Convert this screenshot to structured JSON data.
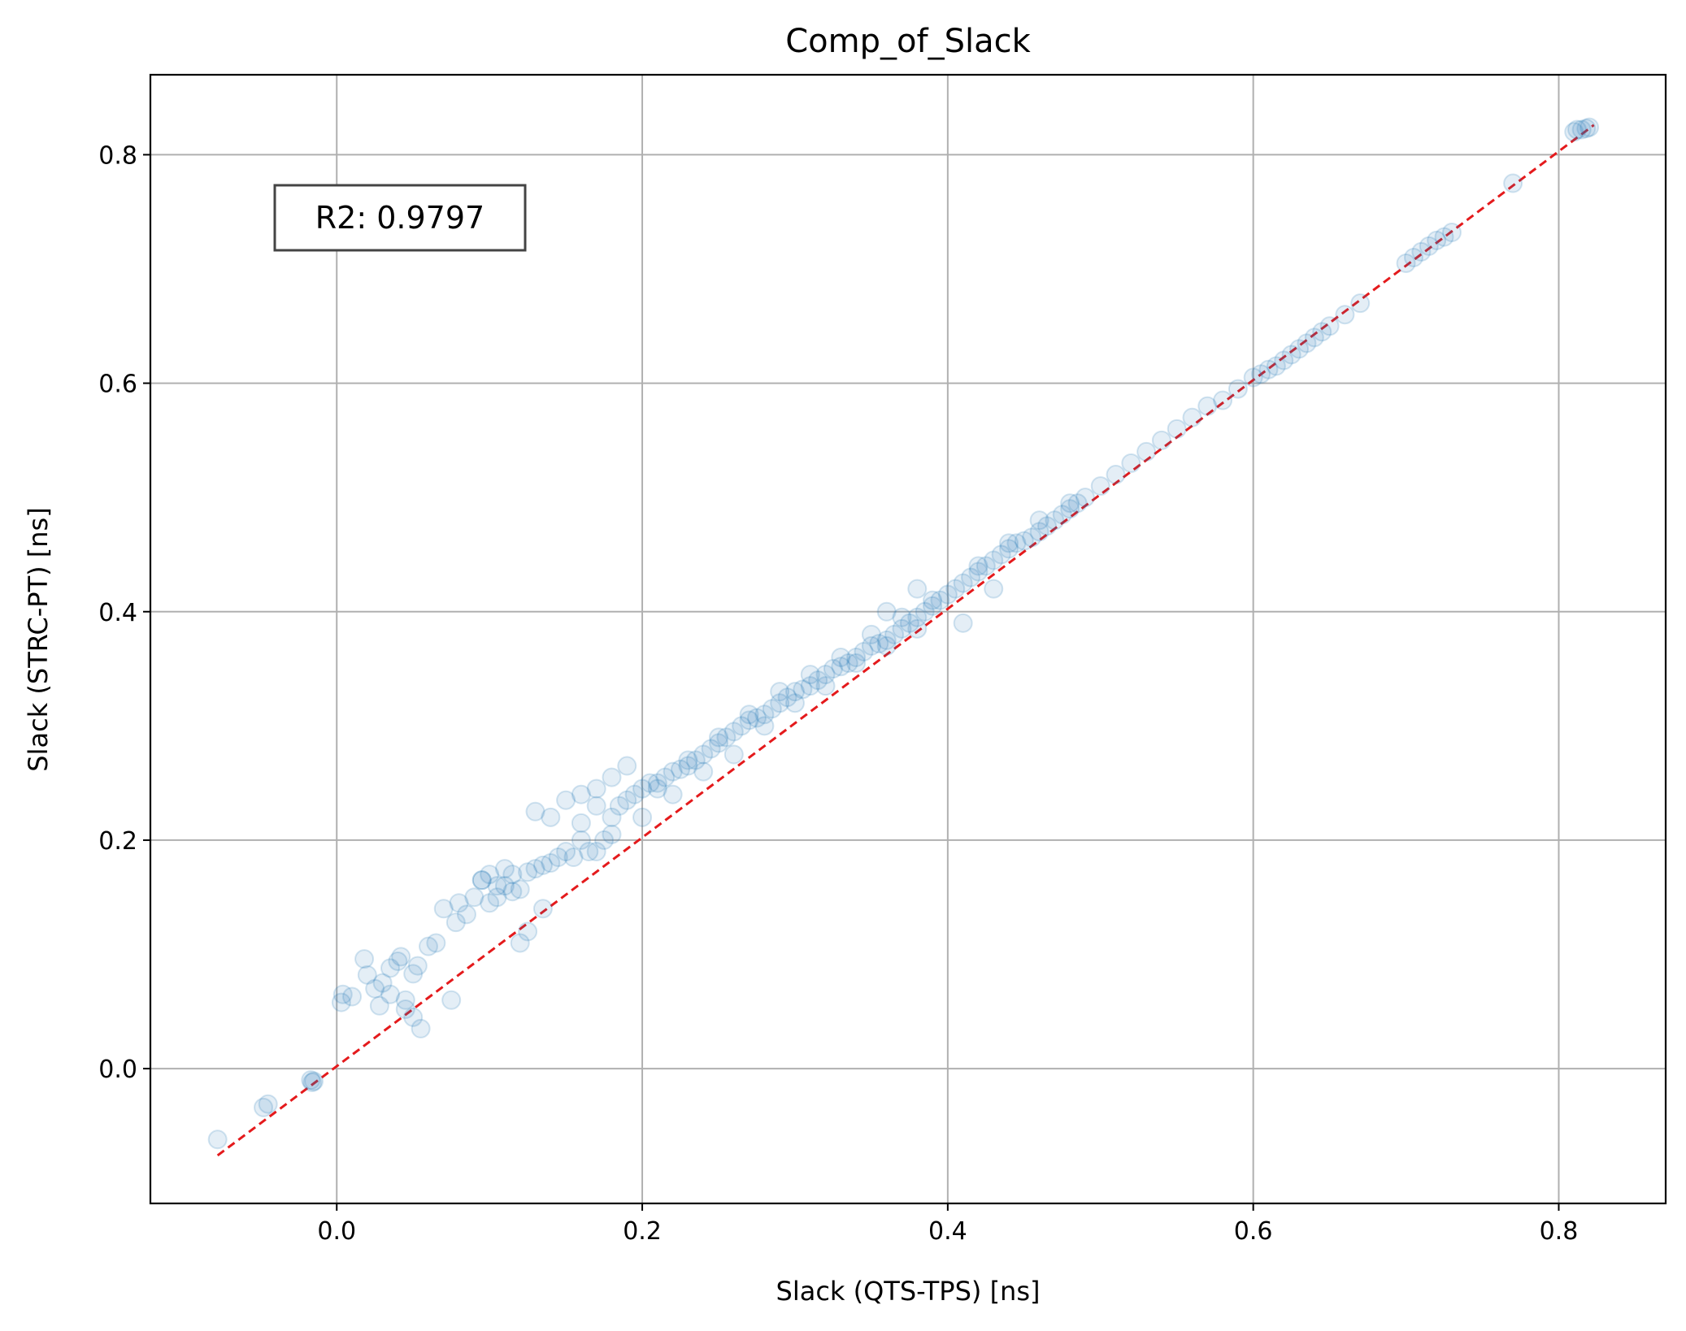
{
  "chart_data": {
    "type": "scatter",
    "title": "Comp_of_Slack",
    "xlabel": "Slack (QTS-TPS) [ns]",
    "ylabel": "Slack (STRC-PT) [ns]",
    "xlim": [
      -0.122,
      0.87
    ],
    "ylim": [
      -0.118,
      0.87
    ],
    "x_ticks": [
      0.0,
      0.2,
      0.4,
      0.6,
      0.8
    ],
    "x_tick_labels": [
      "0.0",
      "0.2",
      "0.4",
      "0.6",
      "0.8"
    ],
    "y_ticks": [
      0.0,
      0.2,
      0.4,
      0.6,
      0.8
    ],
    "y_tick_labels": [
      "0.0",
      "0.2",
      "0.4",
      "0.6",
      "0.8"
    ],
    "grid": true,
    "point_color": "#1f77b4",
    "point_alpha": 0.12,
    "reference_line": {
      "style": "dashed",
      "color": "#e41a1c",
      "x": [
        -0.078,
        0.823
      ],
      "y": [
        -0.076,
        0.826
      ]
    },
    "annotation": {
      "text": "R2: 0.9797",
      "position": "top-left"
    },
    "series": [
      {
        "x": [
          -0.078,
          -0.048,
          -0.045,
          -0.017,
          -0.016,
          -0.015,
          0.003,
          0.004,
          0.01,
          0.018,
          0.02,
          0.025,
          0.028,
          0.03,
          0.035,
          0.04,
          0.042,
          0.045,
          0.05,
          0.053,
          0.055,
          0.06,
          0.065,
          0.07,
          0.075,
          0.078,
          0.08,
          0.085,
          0.09,
          0.095,
          0.1,
          0.105,
          0.11,
          0.115,
          0.12,
          0.125,
          0.13,
          0.135,
          0.14,
          0.145,
          0.15,
          0.155,
          0.16,
          0.165,
          0.17,
          0.175,
          0.18,
          0.13,
          0.14,
          0.15,
          0.16,
          0.17,
          0.12,
          0.125,
          0.135,
          0.18,
          0.185,
          0.19,
          0.195,
          0.2,
          0.205,
          0.21,
          0.215,
          0.22,
          0.225,
          0.23,
          0.235,
          0.24,
          0.245,
          0.25,
          0.255,
          0.26,
          0.265,
          0.27,
          0.275,
          0.28,
          0.285,
          0.29,
          0.295,
          0.3,
          0.305,
          0.31,
          0.315,
          0.32,
          0.325,
          0.33,
          0.335,
          0.34,
          0.345,
          0.35,
          0.355,
          0.36,
          0.365,
          0.37,
          0.375,
          0.38,
          0.385,
          0.39,
          0.395,
          0.4,
          0.405,
          0.41,
          0.415,
          0.42,
          0.425,
          0.43,
          0.435,
          0.44,
          0.445,
          0.45,
          0.455,
          0.46,
          0.465,
          0.47,
          0.475,
          0.48,
          0.485,
          0.49,
          0.5,
          0.51,
          0.52,
          0.53,
          0.54,
          0.55,
          0.56,
          0.57,
          0.58,
          0.59,
          0.6,
          0.605,
          0.61,
          0.615,
          0.62,
          0.625,
          0.63,
          0.635,
          0.64,
          0.645,
          0.65,
          0.66,
          0.67,
          0.7,
          0.705,
          0.71,
          0.715,
          0.72,
          0.725,
          0.73,
          0.77,
          0.81,
          0.812,
          0.815,
          0.818,
          0.82,
          0.2,
          0.22,
          0.24,
          0.26,
          0.28,
          0.3,
          0.32,
          0.34,
          0.36,
          0.38,
          0.21,
          0.23,
          0.25,
          0.27,
          0.29,
          0.31,
          0.33,
          0.35,
          0.37,
          0.39,
          0.42,
          0.44,
          0.46,
          0.48,
          0.36,
          0.38,
          0.41,
          0.43,
          0.16,
          0.17,
          0.18,
          0.19,
          0.095,
          0.1,
          0.105,
          0.11,
          0.115,
          0.045,
          0.05,
          0.035
        ],
        "y": [
          -0.062,
          -0.034,
          -0.031,
          -0.01,
          -0.012,
          -0.011,
          0.058,
          0.065,
          0.063,
          0.096,
          0.082,
          0.07,
          0.055,
          0.075,
          0.088,
          0.094,
          0.098,
          0.052,
          0.083,
          0.09,
          0.035,
          0.107,
          0.11,
          0.14,
          0.06,
          0.128,
          0.145,
          0.135,
          0.15,
          0.165,
          0.145,
          0.16,
          0.16,
          0.17,
          0.157,
          0.172,
          0.175,
          0.178,
          0.18,
          0.185,
          0.19,
          0.185,
          0.2,
          0.19,
          0.19,
          0.2,
          0.205,
          0.225,
          0.22,
          0.235,
          0.24,
          0.245,
          0.11,
          0.12,
          0.14,
          0.22,
          0.23,
          0.235,
          0.24,
          0.245,
          0.25,
          0.245,
          0.255,
          0.26,
          0.262,
          0.265,
          0.27,
          0.275,
          0.28,
          0.285,
          0.29,
          0.295,
          0.3,
          0.305,
          0.307,
          0.31,
          0.315,
          0.32,
          0.325,
          0.33,
          0.332,
          0.335,
          0.34,
          0.345,
          0.35,
          0.352,
          0.355,
          0.36,
          0.365,
          0.37,
          0.372,
          0.375,
          0.38,
          0.385,
          0.39,
          0.395,
          0.4,
          0.405,
          0.41,
          0.415,
          0.42,
          0.425,
          0.43,
          0.435,
          0.44,
          0.445,
          0.45,
          0.455,
          0.46,
          0.462,
          0.465,
          0.47,
          0.475,
          0.48,
          0.485,
          0.49,
          0.495,
          0.5,
          0.51,
          0.52,
          0.53,
          0.54,
          0.55,
          0.56,
          0.57,
          0.58,
          0.585,
          0.595,
          0.605,
          0.608,
          0.612,
          0.615,
          0.62,
          0.625,
          0.63,
          0.635,
          0.64,
          0.645,
          0.65,
          0.66,
          0.67,
          0.705,
          0.71,
          0.715,
          0.72,
          0.725,
          0.728,
          0.732,
          0.775,
          0.82,
          0.822,
          0.822,
          0.823,
          0.824,
          0.22,
          0.24,
          0.26,
          0.275,
          0.3,
          0.32,
          0.335,
          0.355,
          0.37,
          0.385,
          0.25,
          0.27,
          0.29,
          0.31,
          0.33,
          0.345,
          0.36,
          0.38,
          0.395,
          0.41,
          0.44,
          0.46,
          0.48,
          0.495,
          0.4,
          0.42,
          0.39,
          0.42,
          0.215,
          0.23,
          0.255,
          0.265,
          0.165,
          0.17,
          0.15,
          0.175,
          0.155,
          0.06,
          0.045,
          0.065
        ]
      }
    ]
  }
}
